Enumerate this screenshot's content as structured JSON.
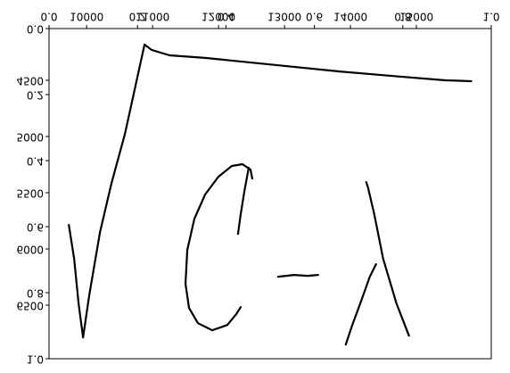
{
  "chart_data": {
    "type": "line",
    "color": "#000000",
    "xlim": [
      0,
      1
    ],
    "xticks": [
      {
        "value": 0,
        "label": "0.0"
      },
      {
        "value": 0.2,
        "label": "0.2"
      },
      {
        "value": 0.4,
        "label": "0.4"
      },
      {
        "value": 0.6,
        "label": "0.6"
      },
      {
        "value": 0.8,
        "label": "0.8"
      },
      {
        "value": 1,
        "label": "1.0"
      }
    ],
    "ylim": [
      0,
      1
    ],
    "yticks": [
      {
        "value": 0,
        "label": "0.0"
      },
      {
        "value": 0.2,
        "label": "0.2"
      },
      {
        "value": 0.4,
        "label": "0.4"
      },
      {
        "value": 0.6,
        "label": "0.6"
      },
      {
        "value": 0.8,
        "label": "0.8"
      },
      {
        "value": 1,
        "label": "1.0"
      }
    ],
    "x2lim": [
      9430,
      16135
    ],
    "x2ticks": [
      10000,
      11000,
      12000,
      13000,
      14000,
      15000
    ],
    "y2lim": [
      4040,
      6976
    ],
    "y2ticks": [
      4500,
      5000,
      5500,
      6000,
      6500
    ],
    "series": [
      {
        "axis": "y2",
        "x": [
          9730,
          9811,
          9878,
          9946,
          10041,
          10203,
          10378,
          10581,
          10878,
          10986,
          11256,
          11796,
          12741,
          13821,
          14766,
          15441,
          15832
        ],
        "values": [
          5786,
          6088,
          6485,
          6787,
          6406,
          5850,
          5413,
          4976,
          4182,
          4230,
          4278,
          4301,
          4357,
          4421,
          4468,
          4500,
          4508
        ]
      },
      {
        "axis": "y2",
        "x": [
          12511,
          12484,
          12363,
          12201,
          11998,
          11796,
          11634,
          11526,
          11499,
          11553,
          11688,
          11904,
          12133,
          12268,
          12336
        ],
        "values": [
          5373,
          5294,
          5246,
          5262,
          5358,
          5516,
          5731,
          6009,
          6310,
          6525,
          6660,
          6723,
          6676,
          6580,
          6517
        ]
      },
      {
        "axis": "y2",
        "x": [
          12295,
          12336,
          12390,
          12457
        ],
        "values": [
          5866,
          5691,
          5493,
          5278
        ]
      },
      {
        "axis": "y2",
        "x": [
          12903,
          13146,
          13348,
          13510
        ],
        "values": [
          6247,
          6231,
          6239,
          6231
        ]
      },
      {
        "axis": "y2",
        "x": [
          14239,
          14266,
          14361,
          14496,
          14698,
          14887
        ],
        "values": [
          5405,
          5453,
          5691,
          6088,
          6485,
          6771
        ]
      },
      {
        "axis": "y2",
        "x": [
          13929,
          14023,
          14158,
          14293,
          14388
        ],
        "values": [
          6850,
          6684,
          6469,
          6247,
          6136
        ]
      }
    ]
  }
}
